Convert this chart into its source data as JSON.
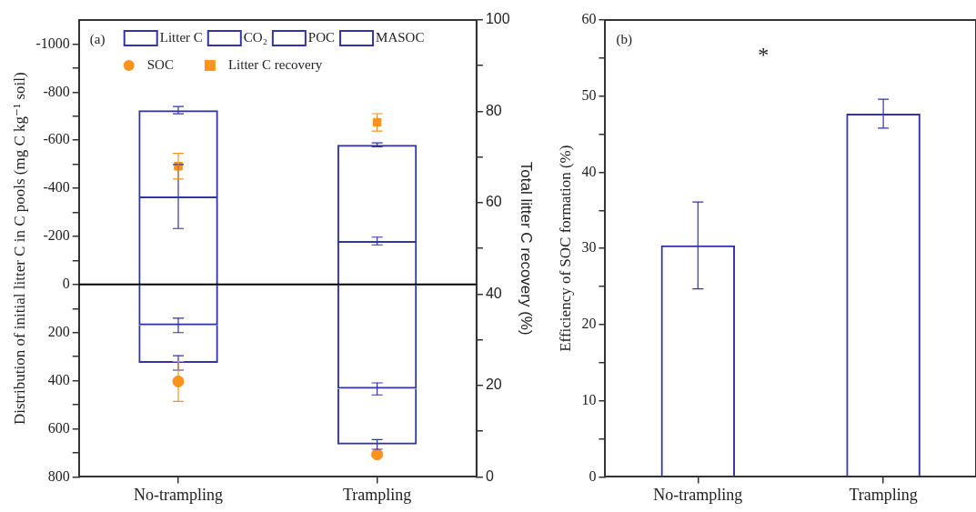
{
  "chart_data": [
    {
      "type": "bar",
      "stacked": true,
      "categories": [
        "No-trampling",
        "Trampling"
      ],
      "ylabel": "Distribution of initial litter C in C pools (mg C kg⁻¹ soil)",
      "y2label": "Total litter C recovery (%)",
      "series": [
        {
          "name": "Litter C",
          "color": "#3333aa",
          "values": [
            -366,
            -181
          ],
          "errors": [
            133,
            16
          ]
        },
        {
          "name": "CO₂",
          "color": "#3333aa",
          "values": [
            -359,
            -400
          ],
          "errors": [
            15,
            8
          ]
        },
        {
          "name": "POC",
          "color": "#3333aa",
          "values": [
            170,
            434
          ],
          "errors": [
            30,
            25
          ]
        },
        {
          "name": "MASOC",
          "color": "#3333aa",
          "values": [
            156,
            231
          ],
          "errors": [
            30,
            20
          ]
        },
        {
          "name": "SOC",
          "type": "scatter",
          "marker": "circle",
          "color": "#f7931e",
          "x": [
            "No-trampling",
            "Trampling"
          ],
          "values": [
            403,
            707
          ],
          "errors": [
            83,
            10
          ]
        },
        {
          "name": "Litter C recovery",
          "type": "scatter",
          "marker": "square",
          "axis": "y2",
          "color": "#f7931e",
          "x": [
            "No-trampling",
            "Trampling"
          ],
          "values": [
            68,
            77.6
          ],
          "errors": [
            2.8,
            1.9
          ]
        }
      ],
      "ylim": [
        800,
        -1100
      ],
      "yticks": [
        800,
        {
          "value": 700,
          "label": null
        },
        600,
        {
          "value": 500,
          "label": null
        },
        400,
        {
          "value": 300,
          "label": null
        },
        200,
        {
          "value": 100,
          "label": null
        },
        0,
        {
          "value": -100,
          "label": null
        },
        -200,
        {
          "value": -300,
          "label": null
        },
        -400,
        {
          "value": -500,
          "label": null
        },
        -600,
        {
          "value": -700,
          "label": null
        },
        -800,
        {
          "value": -900,
          "label": null
        },
        -1000
      ],
      "y2lim": [
        0,
        100
      ],
      "y2ticks": [
        0,
        {
          "value": 10,
          "label": null
        },
        20,
        {
          "value": 30,
          "label": null
        },
        40,
        {
          "value": 50,
          "label": null
        },
        60,
        {
          "value": 70,
          "label": null
        },
        80,
        {
          "value": 90,
          "label": null
        },
        100
      ],
      "ref_lines": [
        {
          "axis": "y",
          "value": 0,
          "color": "#000000"
        }
      ],
      "legend": "top",
      "grid": false,
      "annotations": [
        "(a)"
      ]
    },
    {
      "type": "bar",
      "categories": [
        "No-trampling",
        "Trampling"
      ],
      "values": [
        30.4,
        47.7
      ],
      "errors": [
        5.7,
        1.9
      ],
      "colors": [
        "#3333aa",
        "#3333aa"
      ],
      "ylabel": "Efficiency of SOC formation (%)",
      "ylim": [
        0,
        60
      ],
      "yticks": [
        0,
        {
          "value": 5,
          "label": null
        },
        10,
        {
          "value": 15,
          "label": null
        },
        20,
        {
          "value": 25,
          "label": null
        },
        30,
        {
          "value": 35,
          "label": null
        },
        40,
        {
          "value": 45,
          "label": null
        },
        50,
        {
          "value": 55,
          "label": null
        },
        60
      ],
      "grid": false,
      "annotations": [
        "(b)",
        "*"
      ]
    }
  ]
}
